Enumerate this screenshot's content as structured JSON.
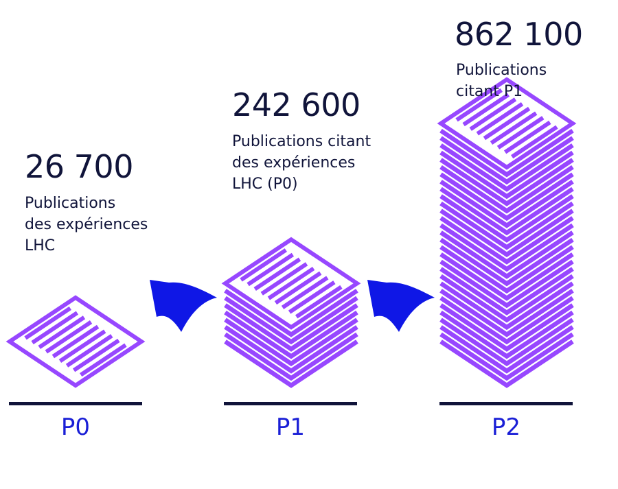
{
  "colors": {
    "dark": "#10143a",
    "purple": "#9747ff",
    "blue": "#0f17e6"
  },
  "stacks": [
    {
      "id": "p0",
      "label": "P0",
      "count": "26 700",
      "desc_lines": [
        "Publications",
        "des expériences",
        "LHC"
      ],
      "sheets": 1
    },
    {
      "id": "p1",
      "label": "P1",
      "count": "242 600",
      "desc_lines": [
        "Publications citant",
        "des expériences",
        "LHC (P0)"
      ],
      "sheets": 9
    },
    {
      "id": "p2",
      "label": "P2",
      "count": "862 100",
      "desc_lines": [
        "Publications",
        "citant P1"
      ],
      "sheets": 31
    }
  ],
  "arrows": [
    {
      "from": "P1",
      "to": "P0",
      "icon": "curved-arrow-left-icon"
    },
    {
      "from": "P2",
      "to": "P1",
      "icon": "curved-arrow-left-icon"
    }
  ]
}
